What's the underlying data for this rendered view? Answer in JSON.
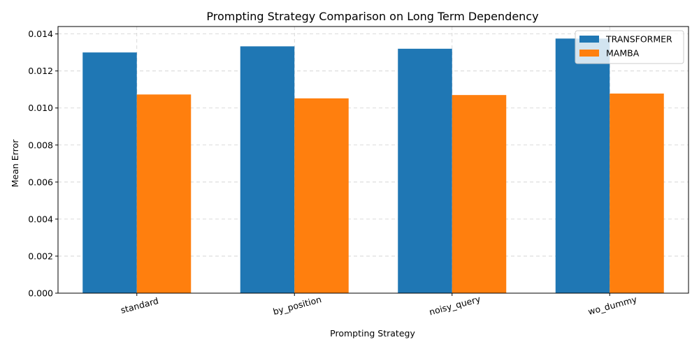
{
  "chart_data": {
    "type": "bar",
    "title": "Prompting Strategy Comparison on Long Term Dependency",
    "xlabel": "Prompting Strategy",
    "ylabel": "Mean Error",
    "categories": [
      "standard",
      "by_position",
      "noisy_query",
      "wo_dummy"
    ],
    "series": [
      {
        "name": "TRANSFORMER",
        "color": "#1f77b4",
        "values": [
          0.013,
          0.01333,
          0.0132,
          0.01375
        ]
      },
      {
        "name": "MAMBA",
        "color": "#ff7f0e",
        "values": [
          0.01073,
          0.01052,
          0.0107,
          0.01078
        ]
      }
    ],
    "ylim": [
      0,
      0.0144
    ],
    "yticks": [
      "0.000",
      "0.002",
      "0.004",
      "0.006",
      "0.008",
      "0.010",
      "0.012",
      "0.014"
    ],
    "grid": true,
    "legend_position": "top-right"
  }
}
